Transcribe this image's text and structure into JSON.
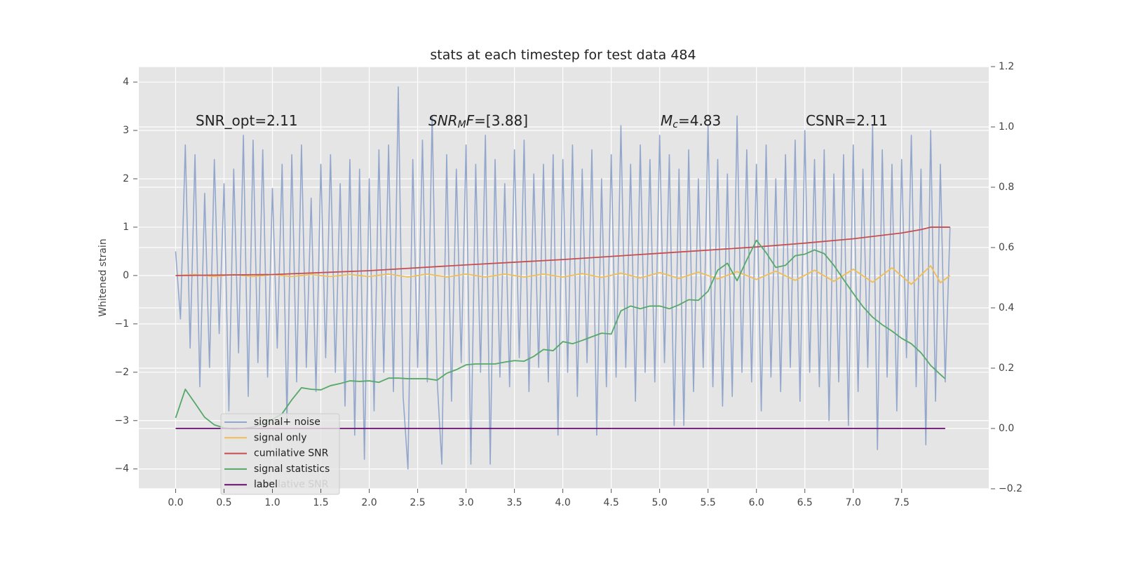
{
  "chart_data": {
    "type": "line",
    "title": "stats at each timestep for test data 484",
    "y_label": "Whitened strain",
    "background": "#e5e5e5",
    "grid": true,
    "legend": "lower left",
    "xlim": [
      -0.38,
      8.4
    ],
    "ylim": [
      -4.41,
      4.32
    ],
    "y2lim": [
      -0.2,
      1.2
    ],
    "xticks": [
      {
        "value": 0,
        "label": "0.0"
      },
      0.5,
      {
        "value": 1,
        "label": "1.0"
      },
      1.5,
      {
        "value": 2,
        "label": "2.0"
      },
      2.5,
      {
        "value": 3,
        "label": "3.0"
      },
      3.5,
      {
        "value": 4,
        "label": "4.0"
      },
      4.5,
      {
        "value": 5,
        "label": "5.0"
      },
      5.5,
      {
        "value": 6,
        "label": "6.0"
      },
      6.5,
      {
        "value": 7,
        "label": "7.0"
      },
      7.5
    ],
    "yticks": [
      {
        "value": -4,
        "label": "−4"
      },
      {
        "value": -3,
        "label": "−3"
      },
      {
        "value": -2,
        "label": "−2"
      },
      {
        "value": -1,
        "label": "−1"
      },
      0,
      1,
      2,
      3,
      4
    ],
    "y2ticks": [
      {
        "value": -0.2,
        "label": "−0.2"
      },
      {
        "value": 0,
        "label": "0.0"
      },
      0.2,
      0.4,
      0.6,
      0.8,
      {
        "value": 1,
        "label": "1.0"
      },
      1.2
    ],
    "annotations": [
      {
        "parts": [
          {
            "text": "SNR_opt=2.11"
          }
        ]
      },
      {
        "parts": [
          {
            "text": "SNR",
            "style": "italic"
          },
          {
            "text": "M",
            "style": "sub"
          },
          {
            "text": "F",
            "style": "italic"
          },
          {
            "text": "=[3.88]"
          }
        ]
      },
      {
        "parts": [
          {
            "text": "M",
            "style": "italic"
          },
          {
            "text": "c",
            "style": "sub"
          },
          {
            "text": "=4.83"
          }
        ]
      },
      {
        "parts": [
          {
            "text": "CSNR=2.11"
          }
        ]
      }
    ],
    "series": [
      {
        "name": "signal+ noise",
        "color": "#93a7cd",
        "x": [
          0,
          0.05,
          0.1,
          0.15,
          0.2,
          0.25,
          0.3,
          0.35,
          0.4,
          0.45,
          0.5,
          0.55,
          0.6,
          0.65,
          0.7,
          0.75,
          0.8,
          0.85,
          0.9,
          0.95,
          1,
          1.05,
          1.1,
          1.15,
          1.2,
          1.25,
          1.3,
          1.35,
          1.4,
          1.45,
          1.5,
          1.55,
          1.6,
          1.65,
          1.7,
          1.75,
          1.8,
          1.85,
          1.9,
          1.95,
          2,
          2.05,
          2.1,
          2.15,
          2.2,
          2.25,
          2.3,
          2.35,
          2.4,
          2.45,
          2.5,
          2.55,
          2.6,
          2.65,
          2.7,
          2.75,
          2.8,
          2.85,
          2.9,
          2.95,
          3,
          3.05,
          3.1,
          3.15,
          3.2,
          3.25,
          3.3,
          3.35,
          3.4,
          3.45,
          3.5,
          3.55,
          3.6,
          3.65,
          3.7,
          3.75,
          3.8,
          3.85,
          3.9,
          3.95,
          4,
          4.05,
          4.1,
          4.15,
          4.2,
          4.25,
          4.3,
          4.35,
          4.4,
          4.45,
          4.5,
          4.55,
          4.6,
          4.65,
          4.7,
          4.75,
          4.8,
          4.85,
          4.9,
          4.95,
          5,
          5.05,
          5.1,
          5.15,
          5.2,
          5.25,
          5.3,
          5.35,
          5.4,
          5.45,
          5.5,
          5.55,
          5.6,
          5.65,
          5.7,
          5.75,
          5.8,
          5.85,
          5.9,
          5.95,
          6,
          6.05,
          6.1,
          6.15,
          6.2,
          6.25,
          6.3,
          6.35,
          6.4,
          6.45,
          6.5,
          6.55,
          6.6,
          6.65,
          6.7,
          6.75,
          6.8,
          6.85,
          6.9,
          6.95,
          7,
          7.05,
          7.1,
          7.15,
          7.2,
          7.25,
          7.3,
          7.35,
          7.4,
          7.45,
          7.5,
          7.55,
          7.6,
          7.65,
          7.7,
          7.75,
          7.8,
          7.85,
          7.9,
          7.95,
          8
        ],
        "values": [
          0.5,
          -0.9,
          2.7,
          -1.5,
          2.5,
          -2.3,
          1.7,
          -1.9,
          2.4,
          -1.2,
          1.9,
          -2.8,
          2.2,
          -1.6,
          2.9,
          -2.5,
          2.8,
          -1.8,
          2.6,
          -2.1,
          1.8,
          -1.5,
          2.3,
          -3.0,
          2.5,
          -2.2,
          2.7,
          -1.9,
          1.6,
          -2.4,
          2.3,
          -1.7,
          2.5,
          -2.0,
          1.9,
          -2.7,
          2.4,
          -3.3,
          2.2,
          -3.8,
          2.0,
          -2.8,
          2.6,
          -2.0,
          2.7,
          -2.4,
          3.9,
          -2.5,
          -4.0,
          2.4,
          -1.9,
          2.8,
          -2.2,
          3.3,
          -2.1,
          -3.9,
          2.5,
          -2.6,
          2.2,
          -1.8,
          2.7,
          -3.9,
          2.3,
          -2.0,
          2.9,
          -3.9,
          2.4,
          -2.1,
          1.9,
          -2.3,
          2.6,
          -1.7,
          2.8,
          -2.4,
          2.1,
          -1.9,
          2.3,
          -2.2,
          2.5,
          -3.3,
          2.4,
          -2.0,
          2.7,
          -2.5,
          2.2,
          -1.8,
          2.6,
          -3.3,
          2.0,
          -2.3,
          2.5,
          -2.1,
          3.1,
          -1.9,
          2.3,
          -2.6,
          2.7,
          -2.0,
          2.4,
          -2.2,
          2.9,
          -1.8,
          2.5,
          -3.1,
          2.2,
          -3.1,
          2.6,
          -2.4,
          2.0,
          -1.9,
          3.1,
          -2.3,
          2.4,
          -2.7,
          2.1,
          -2.5,
          3.3,
          -2.0,
          2.6,
          -2.2,
          2.3,
          -2.8,
          2.7,
          -2.1,
          2.0,
          -2.4,
          2.5,
          -1.9,
          2.8,
          -2.6,
          3.0,
          -2.0,
          2.4,
          -2.3,
          2.6,
          -3.0,
          2.1,
          -2.2,
          2.5,
          -3.1,
          2.7,
          -2.4,
          2.2,
          -1.9,
          3.1,
          -3.6,
          2.6,
          -2.1,
          2.3,
          -2.8,
          2.4,
          -1.7,
          2.9,
          -2.3,
          2.2,
          -3.5,
          3.0,
          -2.6,
          2.3,
          -2.2,
          1.0
        ]
      },
      {
        "name": "signal only",
        "color": "#f0bd55",
        "x": [
          0,
          0.2,
          0.4,
          0.6,
          0.8,
          1,
          1.2,
          1.4,
          1.6,
          1.8,
          2,
          2.2,
          2.4,
          2.6,
          2.8,
          3,
          3.2,
          3.4,
          3.6,
          3.8,
          4,
          4.2,
          4.4,
          4.6,
          4.8,
          5,
          5.2,
          5.4,
          5.6,
          5.8,
          6,
          6.2,
          6.4,
          6.6,
          6.8,
          7,
          7.2,
          7.4,
          7.6,
          7.8,
          7.9,
          8
        ],
        "values": [
          0,
          0.02,
          -0.02,
          0.02,
          -0.02,
          0.02,
          -0.02,
          0.02,
          -0.02,
          0.02,
          -0.02,
          0.03,
          -0.03,
          0.03,
          -0.03,
          0.03,
          -0.03,
          0.03,
          -0.03,
          0.03,
          -0.03,
          0.04,
          -0.04,
          0.05,
          -0.05,
          0.06,
          -0.06,
          0.07,
          -0.07,
          0.08,
          -0.08,
          0.09,
          -0.1,
          0.11,
          -0.12,
          0.13,
          -0.14,
          0.16,
          -0.18,
          0.2,
          -0.15,
          0
        ]
      },
      {
        "name": "cumilative SNR",
        "color": "#c44e52",
        "x": [
          0,
          1,
          2,
          3,
          4,
          5,
          6,
          6.5,
          7,
          7.5,
          7.7,
          7.8,
          8
        ],
        "values": [
          0,
          0.02,
          0.1,
          0.22,
          0.33,
          0.46,
          0.59,
          0.67,
          0.76,
          0.88,
          0.95,
          1.0,
          1.0
        ]
      },
      {
        "name": "signal statistics",
        "color": "#55a868",
        "axis": "y2",
        "x": [
          0,
          0.1,
          0.2,
          0.3,
          0.4,
          0.5,
          0.6,
          0.7,
          0.8,
          0.9,
          1,
          1.1,
          1.2,
          1.3,
          1.4,
          1.5,
          1.6,
          1.7,
          1.8,
          1.9,
          2,
          2.1,
          2.2,
          2.3,
          2.4,
          2.5,
          2.6,
          2.7,
          2.8,
          2.9,
          3,
          3.1,
          3.2,
          3.3,
          3.4,
          3.5,
          3.6,
          3.7,
          3.8,
          3.9,
          4,
          4.1,
          4.2,
          4.3,
          4.4,
          4.5,
          4.6,
          4.7,
          4.8,
          4.9,
          5,
          5.1,
          5.2,
          5.3,
          5.4,
          5.5,
          5.6,
          5.7,
          5.8,
          5.9,
          6,
          6.1,
          6.2,
          6.3,
          6.4,
          6.5,
          6.6,
          6.7,
          6.8,
          6.9,
          7,
          7.1,
          7.2,
          7.3,
          7.4,
          7.5,
          7.6,
          7.7,
          7.8,
          7.9,
          7.95
        ],
        "values": [
          0.035,
          0.13,
          0.084,
          0.037,
          0.012,
          0.002,
          -0.002,
          0,
          0.005,
          0.015,
          0.03,
          0.049,
          0.095,
          0.135,
          0.13,
          0.128,
          0.142,
          0.149,
          0.158,
          0.156,
          0.158,
          0.153,
          0.167,
          0.167,
          0.165,
          0.165,
          0.165,
          0.16,
          0.183,
          0.195,
          0.211,
          0.214,
          0.214,
          0.214,
          0.22,
          0.225,
          0.223,
          0.239,
          0.262,
          0.258,
          0.288,
          0.281,
          0.292,
          0.304,
          0.316,
          0.313,
          0.39,
          0.406,
          0.397,
          0.406,
          0.406,
          0.397,
          0.41,
          0.427,
          0.425,
          0.455,
          0.525,
          0.548,
          0.49,
          0.559,
          0.624,
          0.583,
          0.534,
          0.541,
          0.573,
          0.578,
          0.592,
          0.58,
          0.541,
          0.494,
          0.448,
          0.404,
          0.369,
          0.344,
          0.323,
          0.299,
          0.281,
          0.251,
          0.209,
          0.179,
          0.165
        ]
      },
      {
        "name": "label",
        "color": "#6a0d6e",
        "axis": "y2",
        "x": [
          0,
          7.95
        ],
        "values": [
          0,
          0
        ]
      }
    ]
  }
}
